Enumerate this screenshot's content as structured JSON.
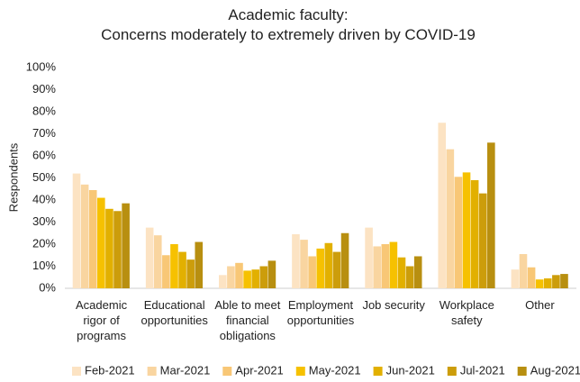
{
  "chart_data": {
    "type": "bar",
    "title": "Academic faculty:\nConcerns moderately to extremely driven by COVID-19",
    "y_label": "Respondents",
    "categories": [
      "Academic\nrigor of\nprograms",
      "Educational\nopportunities",
      "Able to meet\nfinancial\nobligations",
      "Employment\nopportunities",
      "Job security",
      "Workplace\nsafety",
      "Other"
    ],
    "series": [
      {
        "name": "Feb-2021",
        "color": "#fce3c3",
        "values": [
          52,
          27.5,
          6,
          24.5,
          27.5,
          75,
          8.5
        ]
      },
      {
        "name": "Mar-2021",
        "color": "#f9d5a0",
        "values": [
          47,
          24,
          10,
          22,
          19,
          63,
          15.5
        ]
      },
      {
        "name": "Apr-2021",
        "color": "#f8c776",
        "values": [
          44.5,
          15,
          11.5,
          14.5,
          20,
          50.5,
          9.5
        ]
      },
      {
        "name": "May-2021",
        "color": "#f6c100",
        "values": [
          41,
          20,
          8,
          18,
          21,
          52.5,
          4
        ]
      },
      {
        "name": "Jun-2021",
        "color": "#e2b000",
        "values": [
          36,
          16.5,
          8.5,
          20.5,
          14,
          49,
          4.5
        ]
      },
      {
        "name": "Jul-2021",
        "color": "#cc9d0b",
        "values": [
          35,
          13,
          10,
          16.5,
          10,
          43,
          6
        ]
      },
      {
        "name": "Aug-2021",
        "color": "#b88f10",
        "values": [
          38.5,
          21,
          12.5,
          25,
          14.5,
          66,
          6.5
        ]
      }
    ],
    "ylim": [
      0,
      100
    ],
    "yticks": [
      {
        "value": 0,
        "label": "0%"
      },
      {
        "value": 10,
        "label": "10%"
      },
      {
        "value": 20,
        "label": "20%"
      },
      {
        "value": 30,
        "label": "30%"
      },
      {
        "value": 40,
        "label": "40%"
      },
      {
        "value": 50,
        "label": "50%"
      },
      {
        "value": 60,
        "label": "60%"
      },
      {
        "value": 70,
        "label": "70%"
      },
      {
        "value": 80,
        "label": "80%"
      },
      {
        "value": 90,
        "label": "90%"
      },
      {
        "value": 100,
        "label": "100%"
      }
    ],
    "grid": false,
    "legend": "bottom"
  }
}
